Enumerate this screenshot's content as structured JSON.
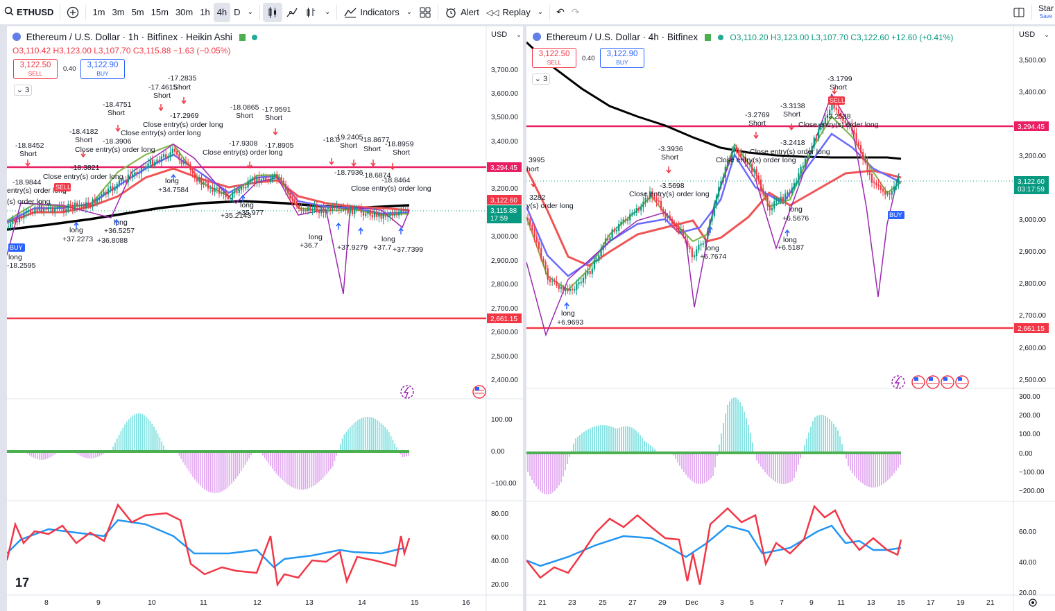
{
  "toolbar": {
    "symbol": "ETHUSD",
    "intervals": [
      "1m",
      "3m",
      "5m",
      "15m",
      "30m",
      "1h",
      "4h",
      "D"
    ],
    "active_interval": "4h",
    "indicators_label": "Indicators",
    "alert_label": "Alert",
    "replay_label": "Replay",
    "star_label": "Star",
    "save_label": "Save"
  },
  "left_chart": {
    "title": "Ethereum / U.S. Dollar · 1h · Bitfinex · Heikin Ashi",
    "ohlc": "O3,110.42 H3,123.00 L3,107.70 C3,115.88 −1.63 (−0.05%)",
    "sell_price": "3,122.50",
    "sell_label": "SELL",
    "spread": "0.40",
    "buy_price": "3,122.90",
    "buy_label": "BUY",
    "collapse_count": "3",
    "currency": "USD",
    "price_scale": [
      "3,700.00",
      "3,600.00",
      "3,500.00",
      "3,400.00",
      "3,300.00",
      "3,200.00",
      "3,100.00",
      "3,000.00",
      "2,900.00",
      "2,800.00",
      "2,700.00",
      "2,600.00",
      "2,500.00",
      "2,400.00"
    ],
    "hline_upper": "3,294.45",
    "hline_lower": "2,661.15",
    "price_tag_1": "3,122.60",
    "price_tag_2": "3,115.88",
    "countdown": "17:59",
    "osc_scale": [
      "100.00",
      "0.00",
      "−100.00"
    ],
    "rsi_scale": [
      "80.00",
      "60.00",
      "40.00",
      "20.00"
    ],
    "time_axis": [
      "8",
      "9",
      "10",
      "11",
      "12",
      "13",
      "14",
      "15",
      "16"
    ],
    "annotations": [
      "-17.2835",
      "Short",
      "-17.4615",
      "Short",
      "-18.4751",
      "Short",
      "-17.2969",
      "Close entry(s) order long",
      "-18.0865",
      "Short",
      "-17.9591",
      "Short",
      "-18.4182",
      "Short",
      "-18.3906",
      "Close entry(s) order long",
      "-18.8452",
      "Short",
      "Close entry(s) order long",
      "-17.9308",
      "-17.8905",
      "Close entry(s) order long",
      "-19.2405",
      "Short",
      "-18.8677",
      "Short",
      "-18.8959",
      "Short",
      "-18.0",
      "-18.3821",
      "Close entry(s) order long",
      "-18.9844",
      "entry(s) order long",
      "(s) order long",
      "-18.7936",
      "-18.6874",
      "-18.8464",
      "Close entry(s) order long",
      "long",
      "+34.7584",
      "long",
      "+35.2143",
      "+35.977",
      "long",
      "+37.2273",
      "long",
      "+36.5257",
      "+36.8088",
      "long",
      "+36.7",
      "+37.9279",
      "long",
      "+37.7",
      "+37.7399",
      "long",
      "-18.2595",
      "SELL",
      "BUY"
    ]
  },
  "right_chart": {
    "title": "Ethereum / U.S. Dollar · 4h · Bitfinex",
    "ohlc": "O3,110.20 H3,123.00 L3,107.70 C3,122.60 +12.60 (+0.41%)",
    "sell_price": "3,122.50",
    "sell_label": "SELL",
    "spread": "0.40",
    "buy_price": "3,122.90",
    "buy_label": "BUY",
    "collapse_count": "3",
    "currency": "USD",
    "price_scale": [
      "3,500.00",
      "3,400.00",
      "3,300.00",
      "3,200.00",
      "3,100.00",
      "3,000.00",
      "2,900.00",
      "2,800.00",
      "2,700.00",
      "2,600.00",
      "2,500.00"
    ],
    "hline_upper": "3,294.45",
    "hline_lower": "2,661.15",
    "price_tag": "3,122.60",
    "countdown": "03:17:59",
    "osc_scale": [
      "300.00",
      "200.00",
      "100.00",
      "0.00",
      "−100.00",
      "−200.00"
    ],
    "rsi_scale": [
      "60.00",
      "40.00",
      "20.00"
    ],
    "time_axis": [
      "21",
      "23",
      "25",
      "27",
      "29",
      "Dec",
      "3",
      "5",
      "7",
      "9",
      "11",
      "13",
      "15",
      "17",
      "19",
      "21"
    ],
    "annotations": [
      "-3.1799",
      "Short",
      "-3.2538",
      "-3.3138",
      "Short",
      "-3.2769",
      "Short",
      "Close entry(s) order long",
      "-3.2418",
      "Close entry(s) order long",
      "Close entry(s) order long",
      "-3.3936",
      "Short",
      "3995",
      "hort",
      "-3.5698",
      "Close entry(s) order long",
      "3282",
      "y(s) order long",
      "long",
      "+6.5676",
      "long",
      "+6.5187",
      "long",
      "+6.7674",
      "long",
      "+6.9693",
      "SELL",
      "BUY"
    ]
  }
}
